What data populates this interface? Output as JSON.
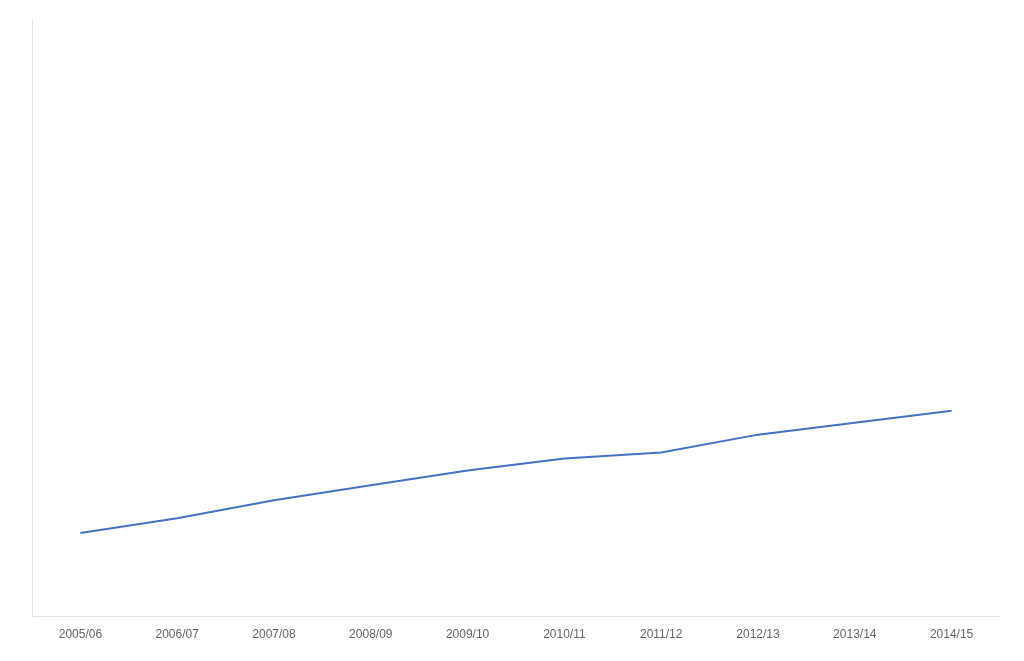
{
  "chart_data": {
    "type": "line",
    "categories": [
      "2005/06",
      "2006/07",
      "2007/08",
      "2008/09",
      "2009/10",
      "2010/11",
      "2011/12",
      "2012/13",
      "2013/14",
      "2014/15"
    ],
    "values": [
      14.0,
      16.5,
      19.5,
      22.0,
      24.5,
      26.5,
      27.5,
      30.5,
      32.5,
      34.5
    ],
    "color": "#4472C4",
    "ylim": [
      0,
      100
    ],
    "grid": false,
    "tick_labels": "x"
  }
}
